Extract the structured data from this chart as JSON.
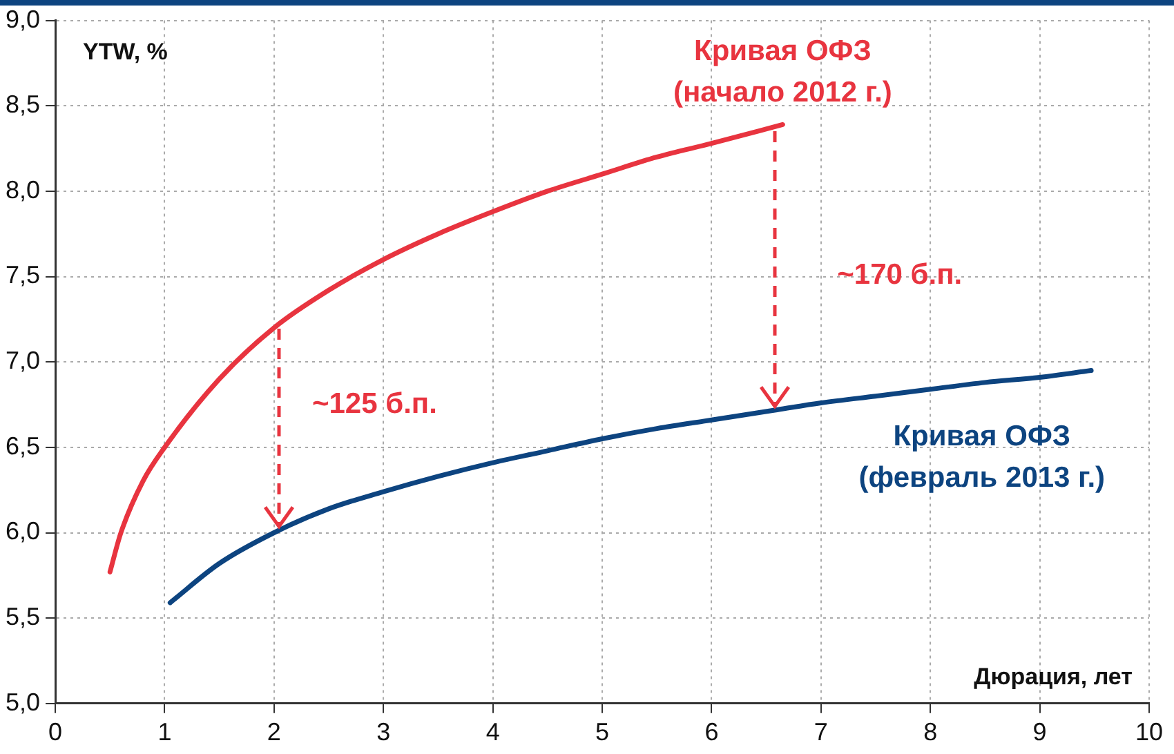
{
  "chart_data": {
    "type": "line",
    "xlabel": "Дюрация, лет",
    "ylabel": "YTW, %",
    "xlim": [
      0,
      10
    ],
    "xticks": [
      0,
      1,
      2,
      3,
      4,
      5,
      6,
      7,
      8,
      9,
      10
    ],
    "ylim": [
      5,
      9
    ],
    "yticks": [
      {
        "value": 5,
        "label": "5,0"
      },
      {
        "value": 5.5,
        "label": "5,5"
      },
      {
        "value": 6,
        "label": "6,0"
      },
      {
        "value": 6.5,
        "label": "6,5"
      },
      {
        "value": 7,
        "label": "7,0"
      },
      {
        "value": 7.5,
        "label": "7,5"
      },
      {
        "value": 8,
        "label": "8,0"
      },
      {
        "value": 8.5,
        "label": "8,5"
      },
      {
        "value": 9,
        "label": "9,0"
      }
    ],
    "grid": true,
    "legend": false,
    "marker": "none",
    "line_style": "solid",
    "series": [
      {
        "name": "Кривая ОФЗ (начало 2012 г.)",
        "color": "#e8343f",
        "x": [
          0.5,
          0.6,
          0.8,
          1,
          1.5,
          2,
          2.5,
          3,
          3.5,
          4,
          4.5,
          5,
          5.5,
          6,
          6.65
        ],
        "values": [
          5.77,
          6.0,
          6.3,
          6.5,
          6.9,
          7.2,
          7.42,
          7.6,
          7.75,
          7.88,
          8.0,
          8.1,
          8.2,
          8.28,
          8.39
        ]
      },
      {
        "name": "Кривая ОФЗ (февраль 2013 г.)",
        "color": "#0d4480",
        "x": [
          1.05,
          1.5,
          2,
          2.5,
          3,
          3.5,
          4,
          4.5,
          5,
          5.5,
          6,
          6.6,
          7,
          7.5,
          8,
          8.5,
          9,
          9.47
        ],
        "values": [
          5.59,
          5.82,
          6.0,
          6.14,
          6.24,
          6.33,
          6.41,
          6.48,
          6.55,
          6.61,
          6.66,
          6.72,
          6.76,
          6.8,
          6.84,
          6.88,
          6.91,
          6.95
        ]
      }
    ],
    "annotations": [
      "~125 б.п.",
      "~170 б.п."
    ]
  }
}
